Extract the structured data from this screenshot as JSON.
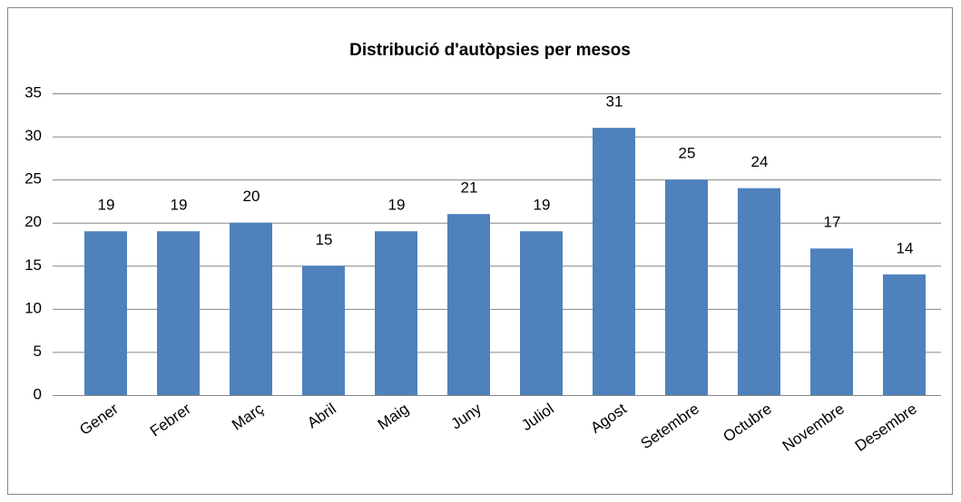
{
  "chart_data": {
    "type": "bar",
    "title": "Distribució d'autòpsies per mesos",
    "categories": [
      "Gener",
      "Febrer",
      "Març",
      "Abril",
      "Maig",
      "Juny",
      "Juliol",
      "Agost",
      "Setembre",
      "Octubre",
      "Novembre",
      "Desembre"
    ],
    "values": [
      19,
      19,
      20,
      15,
      19,
      21,
      19,
      31,
      25,
      24,
      17,
      14
    ],
    "color": "#4f81bd",
    "ylim": [
      0,
      35
    ],
    "yticks": [
      0,
      5,
      10,
      15,
      20,
      25,
      30,
      35
    ],
    "grid": true
  }
}
